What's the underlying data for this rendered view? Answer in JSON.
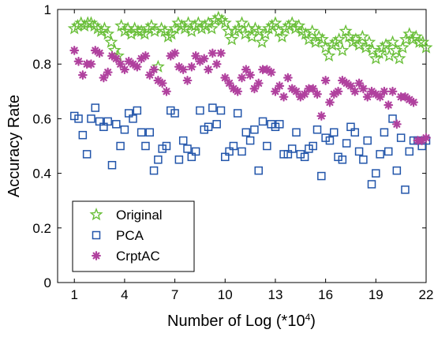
{
  "chart_data": {
    "type": "scatter",
    "title": "",
    "xlabel": "Number of Log (*10",
    "xlabel_exponent": "4",
    "xlabel_suffix": ")",
    "ylabel": "Accuracy Rate",
    "xlim": [
      0,
      22
    ],
    "ylim": [
      0,
      1
    ],
    "xticks": [
      1,
      4,
      7,
      10,
      13,
      16,
      19,
      22
    ],
    "yticks": [
      0,
      0.2,
      0.4,
      0.6,
      0.8,
      1
    ],
    "ytick_labels": [
      "0",
      "0.2",
      "0.4",
      "0.6",
      "0.8",
      "1"
    ],
    "grid": false,
    "legend_position": "bottom-left",
    "series": [
      {
        "name": "Original",
        "marker": "star",
        "color": "#6abf3a",
        "x": [
          1.0,
          1.2,
          1.4,
          1.6,
          1.8,
          2.0,
          2.2,
          2.4,
          2.6,
          2.8,
          3.0,
          3.2,
          3.4,
          3.6,
          3.8,
          4.0,
          4.2,
          4.4,
          4.6,
          4.8,
          5.0,
          5.2,
          5.4,
          5.6,
          5.8,
          6.0,
          6.2,
          6.4,
          6.6,
          6.8,
          7.0,
          7.2,
          7.4,
          7.6,
          7.8,
          8.0,
          8.2,
          8.4,
          8.6,
          8.8,
          9.0,
          9.2,
          9.4,
          9.6,
          9.8,
          10.0,
          10.2,
          10.4,
          10.6,
          10.8,
          11.0,
          11.2,
          11.4,
          11.6,
          11.8,
          12.0,
          12.2,
          12.4,
          12.6,
          12.8,
          13.0,
          13.2,
          13.4,
          13.6,
          13.8,
          14.0,
          14.2,
          14.4,
          14.6,
          14.8,
          15.0,
          15.2,
          15.4,
          15.6,
          15.8,
          16.0,
          16.2,
          16.4,
          16.6,
          16.8,
          17.0,
          17.2,
          17.4,
          17.6,
          17.8,
          18.0,
          18.2,
          18.4,
          18.6,
          18.8,
          19.0,
          19.2,
          19.4,
          19.6,
          19.8,
          20.0,
          20.2,
          20.4,
          20.6,
          20.8,
          21.0,
          21.2,
          21.4,
          21.6,
          21.8,
          22.0
        ],
        "y": [
          0.93,
          0.94,
          0.95,
          0.94,
          0.95,
          0.95,
          0.94,
          0.93,
          0.92,
          0.93,
          0.91,
          0.88,
          0.85,
          0.83,
          0.94,
          0.92,
          0.93,
          0.91,
          0.93,
          0.92,
          0.92,
          0.91,
          0.93,
          0.94,
          0.92,
          0.79,
          0.93,
          0.92,
          0.9,
          0.91,
          0.93,
          0.95,
          0.94,
          0.93,
          0.95,
          0.92,
          0.94,
          0.95,
          0.93,
          0.94,
          0.95,
          0.93,
          0.96,
          0.97,
          0.96,
          0.95,
          0.92,
          0.89,
          0.92,
          0.93,
          0.95,
          0.91,
          0.93,
          0.9,
          0.93,
          0.92,
          0.88,
          0.91,
          0.93,
          0.94,
          0.95,
          0.92,
          0.9,
          0.93,
          0.94,
          0.95,
          0.93,
          0.94,
          0.92,
          0.91,
          0.89,
          0.92,
          0.88,
          0.9,
          0.89,
          0.86,
          0.83,
          0.87,
          0.88,
          0.89,
          0.85,
          0.92,
          0.9,
          0.88,
          0.89,
          0.87,
          0.9,
          0.86,
          0.88,
          0.85,
          0.82,
          0.84,
          0.86,
          0.87,
          0.83,
          0.88,
          0.85,
          0.82,
          0.86,
          0.89,
          0.91,
          0.89,
          0.9,
          0.88,
          0.88,
          0.86
        ],
        "note_values_estimated": "values read off the plot"
      },
      {
        "name": "PCA",
        "marker": "square",
        "color": "#2255aa",
        "x": [
          1.0,
          1.25,
          1.5,
          1.75,
          2.0,
          2.25,
          2.5,
          2.75,
          3.0,
          3.25,
          3.5,
          3.75,
          4.0,
          4.25,
          4.5,
          4.75,
          5.0,
          5.25,
          5.5,
          5.75,
          6.0,
          6.25,
          6.5,
          6.75,
          7.0,
          7.25,
          7.5,
          7.75,
          8.0,
          8.25,
          8.5,
          8.75,
          9.0,
          9.25,
          9.5,
          9.75,
          10.0,
          10.25,
          10.5,
          10.75,
          11.0,
          11.25,
          11.5,
          11.75,
          12.0,
          12.25,
          12.5,
          12.75,
          13.0,
          13.25,
          13.5,
          13.75,
          14.0,
          14.25,
          14.5,
          14.75,
          15.0,
          15.25,
          15.5,
          15.75,
          16.0,
          16.25,
          16.5,
          16.75,
          17.0,
          17.25,
          17.5,
          17.75,
          18.0,
          18.25,
          18.5,
          18.75,
          19.0,
          19.25,
          19.5,
          19.75,
          20.0,
          20.25,
          20.5,
          20.75,
          21.0,
          21.25,
          21.5,
          21.75,
          22.0
        ],
        "y": [
          0.61,
          0.6,
          0.54,
          0.47,
          0.6,
          0.64,
          0.59,
          0.57,
          0.59,
          0.43,
          0.58,
          0.5,
          0.56,
          0.62,
          0.6,
          0.63,
          0.55,
          0.5,
          0.55,
          0.41,
          0.45,
          0.49,
          0.5,
          0.63,
          0.62,
          0.45,
          0.52,
          0.49,
          0.46,
          0.48,
          0.63,
          0.56,
          0.57,
          0.64,
          0.58,
          0.63,
          0.46,
          0.48,
          0.5,
          0.62,
          0.48,
          0.55,
          0.52,
          0.56,
          0.41,
          0.59,
          0.5,
          0.58,
          0.57,
          0.58,
          0.47,
          0.47,
          0.49,
          0.55,
          0.47,
          0.46,
          0.49,
          0.5,
          0.56,
          0.39,
          0.53,
          0.52,
          0.55,
          0.46,
          0.45,
          0.51,
          0.57,
          0.55,
          0.48,
          0.45,
          0.52,
          0.36,
          0.4,
          0.47,
          0.55,
          0.48,
          0.6,
          0.41,
          0.53,
          0.34,
          0.48,
          0.52,
          0.52,
          0.5,
          0.52
        ],
        "note_values_estimated": "values read off the plot"
      },
      {
        "name": "CrptAC",
        "marker": "asterisk",
        "color": "#b0419e",
        "x": [
          1.0,
          1.25,
          1.5,
          1.75,
          2.0,
          2.25,
          2.5,
          2.75,
          3.0,
          3.25,
          3.5,
          3.75,
          4.0,
          4.25,
          4.5,
          4.75,
          5.0,
          5.25,
          5.5,
          5.75,
          6.0,
          6.25,
          6.5,
          6.75,
          7.0,
          7.25,
          7.5,
          7.75,
          8.0,
          8.25,
          8.5,
          8.75,
          9.0,
          9.25,
          9.5,
          9.75,
          10.0,
          10.25,
          10.5,
          10.75,
          11.0,
          11.25,
          11.5,
          11.75,
          12.0,
          12.25,
          12.5,
          12.75,
          13.0,
          13.25,
          13.5,
          13.75,
          14.0,
          14.25,
          14.5,
          14.75,
          15.0,
          15.25,
          15.5,
          15.75,
          16.0,
          16.25,
          16.5,
          16.75,
          17.0,
          17.25,
          17.5,
          17.75,
          18.0,
          18.25,
          18.5,
          18.75,
          19.0,
          19.25,
          19.5,
          19.75,
          20.0,
          20.25,
          20.5,
          20.75,
          21.0,
          21.25,
          21.5,
          21.75,
          22.0
        ],
        "y": [
          0.85,
          0.81,
          0.76,
          0.8,
          0.8,
          0.85,
          0.84,
          0.75,
          0.77,
          0.83,
          0.82,
          0.8,
          0.78,
          0.81,
          0.8,
          0.79,
          0.82,
          0.83,
          0.76,
          0.78,
          0.74,
          0.73,
          0.7,
          0.83,
          0.84,
          0.79,
          0.78,
          0.74,
          0.79,
          0.83,
          0.81,
          0.82,
          0.78,
          0.84,
          0.8,
          0.84,
          0.75,
          0.73,
          0.71,
          0.7,
          0.75,
          0.78,
          0.76,
          0.71,
          0.73,
          0.78,
          0.78,
          0.77,
          0.7,
          0.72,
          0.68,
          0.75,
          0.71,
          0.7,
          0.68,
          0.69,
          0.71,
          0.71,
          0.69,
          0.61,
          0.74,
          0.66,
          0.69,
          0.7,
          0.74,
          0.73,
          0.72,
          0.7,
          0.73,
          0.71,
          0.68,
          0.7,
          0.69,
          0.68,
          0.7,
          0.65,
          0.7,
          0.58,
          0.68,
          0.68,
          0.67,
          0.66,
          0.52,
          0.52,
          0.53
        ],
        "note_values_estimated": "values read off the plot"
      }
    ]
  }
}
